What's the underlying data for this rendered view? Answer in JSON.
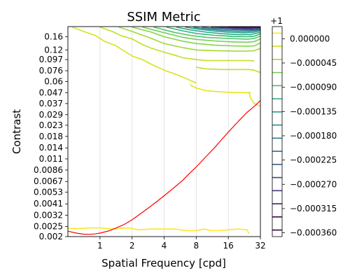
{
  "chart_data": {
    "type": "contour",
    "title": "SSIM Metric",
    "xlabel": "Spatial Frequency [cpd]",
    "ylabel": "Contrast",
    "xscale": "log2",
    "yscale": "log",
    "xlim": [
      0.5,
      32
    ],
    "ylim": [
      0.002,
      0.2
    ],
    "x_ticks": [
      1,
      2,
      4,
      8,
      16,
      32
    ],
    "x_tick_labels": [
      "1",
      "2",
      "4",
      "8",
      "16",
      "32"
    ],
    "y_ticks": [
      0.002,
      0.0025,
      0.0032,
      0.0041,
      0.0053,
      0.0067,
      0.0086,
      0.011,
      0.014,
      0.018,
      0.023,
      0.029,
      0.037,
      0.047,
      0.06,
      0.076,
      0.097,
      0.12,
      0.16
    ],
    "y_tick_labels": [
      "0.002",
      "0.0025",
      "0.0032",
      "0.0041",
      "0.0053",
      "0.0067",
      "0.0086",
      "0.011",
      "0.014",
      "0.018",
      "0.023",
      "0.029",
      "0.037",
      "0.047",
      "0.06",
      "0.076",
      "0.097",
      "0.12",
      "0.16"
    ],
    "grid": "vertical",
    "colorbar": {
      "offset_label": "+1",
      "tick_values": [
        0.0,
        -4.5e-05,
        -9e-05,
        -0.000135,
        -0.00018,
        -0.000225,
        -0.00027,
        -0.000315,
        -0.00036
      ],
      "tick_labels": [
        "0.000000",
        "−0.000045",
        "−0.000090",
        "−0.000135",
        "−0.000180",
        "−0.000225",
        "−0.000270",
        "−0.000315",
        "−0.000360"
      ],
      "level_colors": [
        "#fde725",
        "#d0e11c",
        "#a0da39",
        "#73d056",
        "#4ac16d",
        "#2db27d",
        "#1fa187",
        "#21918c",
        "#277f8e",
        "#2e6e8e",
        "#365c8d",
        "#3f4788",
        "#46327e",
        "#481b6d",
        "#440154",
        "#440154"
      ],
      "colormap": "viridis"
    },
    "contours": [
      {
        "level_index": 0,
        "color": "#fde725",
        "points": [
          [
            0.5,
            0.0024
          ],
          [
            0.6,
            0.00238
          ],
          [
            0.8,
            0.00242
          ],
          [
            1.0,
            0.00242
          ],
          [
            1.3,
            0.00236
          ],
          [
            1.6,
            0.0024
          ],
          [
            1.9,
            0.00242
          ],
          [
            2.3,
            0.00232
          ],
          [
            3.0,
            0.00236
          ],
          [
            4.0,
            0.00236
          ],
          [
            5.0,
            0.00236
          ],
          [
            6.5,
            0.00228
          ],
          [
            8.0,
            0.00228
          ],
          [
            9.5,
            0.00236
          ],
          [
            11,
            0.00228
          ],
          [
            13,
            0.00228
          ],
          [
            16,
            0.00232
          ],
          [
            20,
            0.00236
          ],
          [
            24,
            0.00232
          ],
          [
            25,
            0.00212
          ]
        ]
      },
      {
        "level_index": 0,
        "color": "#e4e419",
        "points": [
          [
            25,
            0.047
          ],
          [
            26,
            0.041
          ],
          [
            28,
            0.037
          ],
          [
            32,
            0.035
          ]
        ]
      },
      {
        "level_index": 0,
        "color": "#e4e419",
        "points": [
          [
            7,
            0.056
          ],
          [
            8,
            0.052
          ],
          [
            10,
            0.049
          ],
          [
            13,
            0.048
          ],
          [
            18,
            0.047
          ],
          [
            24,
            0.047
          ],
          [
            26,
            0.047
          ]
        ]
      },
      {
        "level_index": 1,
        "color": "#d8e21f",
        "points": [
          [
            0.55,
            0.198
          ],
          [
            0.7,
            0.18
          ],
          [
            0.9,
            0.165
          ],
          [
            1.1,
            0.145
          ],
          [
            1.4,
            0.132
          ],
          [
            2,
            0.105
          ],
          [
            2.5,
            0.097
          ],
          [
            3,
            0.088
          ],
          [
            4,
            0.077
          ],
          [
            5,
            0.071
          ],
          [
            6,
            0.066
          ],
          [
            8,
            0.058
          ]
        ]
      },
      {
        "level_index": 2,
        "color": "#c2df23",
        "points": [
          [
            8,
            0.082
          ],
          [
            10,
            0.079
          ],
          [
            14,
            0.078
          ],
          [
            20,
            0.078
          ],
          [
            25,
            0.078
          ],
          [
            28,
            0.077
          ],
          [
            32,
            0.073
          ]
        ]
      },
      {
        "level_index": 2,
        "color": "#c2df23",
        "points": [
          [
            1.0,
            0.198
          ],
          [
            1.3,
            0.18
          ],
          [
            1.6,
            0.163
          ],
          [
            2,
            0.153
          ],
          [
            2.5,
            0.135
          ],
          [
            3,
            0.125
          ],
          [
            4,
            0.114
          ],
          [
            5,
            0.107
          ],
          [
            6,
            0.101
          ],
          [
            8,
            0.097
          ],
          [
            10,
            0.095
          ],
          [
            14,
            0.095
          ],
          [
            20,
            0.095
          ],
          [
            25,
            0.095
          ],
          [
            28,
            0.094
          ]
        ]
      },
      {
        "level_index": 3,
        "color": "#a0da39",
        "points": [
          [
            1.5,
            0.198
          ],
          [
            2,
            0.18
          ],
          [
            3,
            0.155
          ],
          [
            4,
            0.138
          ],
          [
            6,
            0.126
          ],
          [
            8,
            0.12
          ],
          [
            12,
            0.118
          ],
          [
            18,
            0.117
          ],
          [
            24,
            0.117
          ],
          [
            28,
            0.118
          ],
          [
            32,
            0.124
          ]
        ]
      },
      {
        "level_index": 4,
        "color": "#86d549",
        "points": [
          [
            2,
            0.198
          ],
          [
            3,
            0.178
          ],
          [
            4,
            0.16
          ],
          [
            6,
            0.145
          ],
          [
            8,
            0.138
          ],
          [
            12,
            0.133
          ],
          [
            18,
            0.131
          ],
          [
            24,
            0.13
          ],
          [
            28,
            0.131
          ],
          [
            32,
            0.14
          ]
        ]
      },
      {
        "level_index": 5,
        "color": "#73d056",
        "points": [
          [
            2.5,
            0.198
          ],
          [
            4,
            0.175
          ],
          [
            6,
            0.158
          ],
          [
            8,
            0.151
          ],
          [
            12,
            0.146
          ],
          [
            18,
            0.143
          ],
          [
            24,
            0.142
          ],
          [
            28,
            0.144
          ],
          [
            32,
            0.153
          ]
        ]
      },
      {
        "level_index": 6,
        "color": "#52c569",
        "points": [
          [
            3.2,
            0.198
          ],
          [
            5,
            0.176
          ],
          [
            7,
            0.165
          ],
          [
            10,
            0.158
          ],
          [
            16,
            0.154
          ],
          [
            24,
            0.152
          ],
          [
            28,
            0.154
          ],
          [
            32,
            0.162
          ]
        ]
      },
      {
        "level_index": 7,
        "color": "#35b779",
        "points": [
          [
            4.2,
            0.198
          ],
          [
            6,
            0.182
          ],
          [
            8,
            0.172
          ],
          [
            12,
            0.165
          ],
          [
            18,
            0.161
          ],
          [
            24,
            0.16
          ],
          [
            28,
            0.162
          ],
          [
            32,
            0.17
          ]
        ]
      },
      {
        "level_index": 8,
        "color": "#25ab82",
        "points": [
          [
            5.2,
            0.198
          ],
          [
            7,
            0.186
          ],
          [
            10,
            0.177
          ],
          [
            14,
            0.171
          ],
          [
            20,
            0.168
          ],
          [
            26,
            0.168
          ],
          [
            32,
            0.176
          ]
        ]
      },
      {
        "level_index": 9,
        "color": "#1f9e89",
        "points": [
          [
            6.3,
            0.198
          ],
          [
            8.5,
            0.189
          ],
          [
            12,
            0.181
          ],
          [
            16,
            0.177
          ],
          [
            22,
            0.175
          ],
          [
            27,
            0.176
          ],
          [
            32,
            0.182
          ]
        ]
      },
      {
        "level_index": 10,
        "color": "#26828e",
        "points": [
          [
            7.5,
            0.198
          ],
          [
            10,
            0.19
          ],
          [
            14,
            0.184
          ],
          [
            20,
            0.181
          ],
          [
            26,
            0.181
          ],
          [
            32,
            0.186
          ]
        ]
      },
      {
        "level_index": 11,
        "color": "#31688e",
        "points": [
          [
            9,
            0.198
          ],
          [
            12,
            0.192
          ],
          [
            16,
            0.188
          ],
          [
            22,
            0.186
          ],
          [
            28,
            0.186
          ],
          [
            32,
            0.19
          ]
        ]
      },
      {
        "level_index": 12,
        "color": "#3e4989",
        "points": [
          [
            11,
            0.198
          ],
          [
            15,
            0.194
          ],
          [
            20,
            0.191
          ],
          [
            26,
            0.19
          ],
          [
            32,
            0.193
          ]
        ]
      },
      {
        "level_index": 13,
        "color": "#482878",
        "points": [
          [
            13,
            0.198
          ],
          [
            18,
            0.195
          ],
          [
            24,
            0.194
          ],
          [
            32,
            0.196
          ]
        ]
      },
      {
        "level_index": 14,
        "color": "#440154",
        "points": [
          [
            16,
            0.199
          ],
          [
            22,
            0.198
          ],
          [
            32,
            0.199
          ]
        ]
      }
    ],
    "reference_curve": {
      "color": "#ff0000",
      "points": [
        [
          0.5,
          0.00225
        ],
        [
          0.6,
          0.00216
        ],
        [
          0.7,
          0.00211
        ],
        [
          0.8,
          0.0021
        ],
        [
          0.9,
          0.00212
        ],
        [
          1.0,
          0.00216
        ],
        [
          1.2,
          0.00226
        ],
        [
          1.4,
          0.0024
        ],
        [
          1.7,
          0.00262
        ],
        [
          2,
          0.00289
        ],
        [
          2.5,
          0.0034
        ],
        [
          3,
          0.0039
        ],
        [
          3.5,
          0.0044
        ],
        [
          4,
          0.0049
        ],
        [
          5,
          0.0059
        ],
        [
          6,
          0.0069
        ],
        [
          7,
          0.0081
        ],
        [
          8,
          0.0092
        ],
        [
          10,
          0.0117
        ],
        [
          12,
          0.0142
        ],
        [
          14,
          0.017
        ],
        [
          16,
          0.0198
        ],
        [
          20,
          0.0252
        ],
        [
          24,
          0.0305
        ],
        [
          28,
          0.0348
        ],
        [
          32,
          0.0395
        ]
      ]
    }
  }
}
